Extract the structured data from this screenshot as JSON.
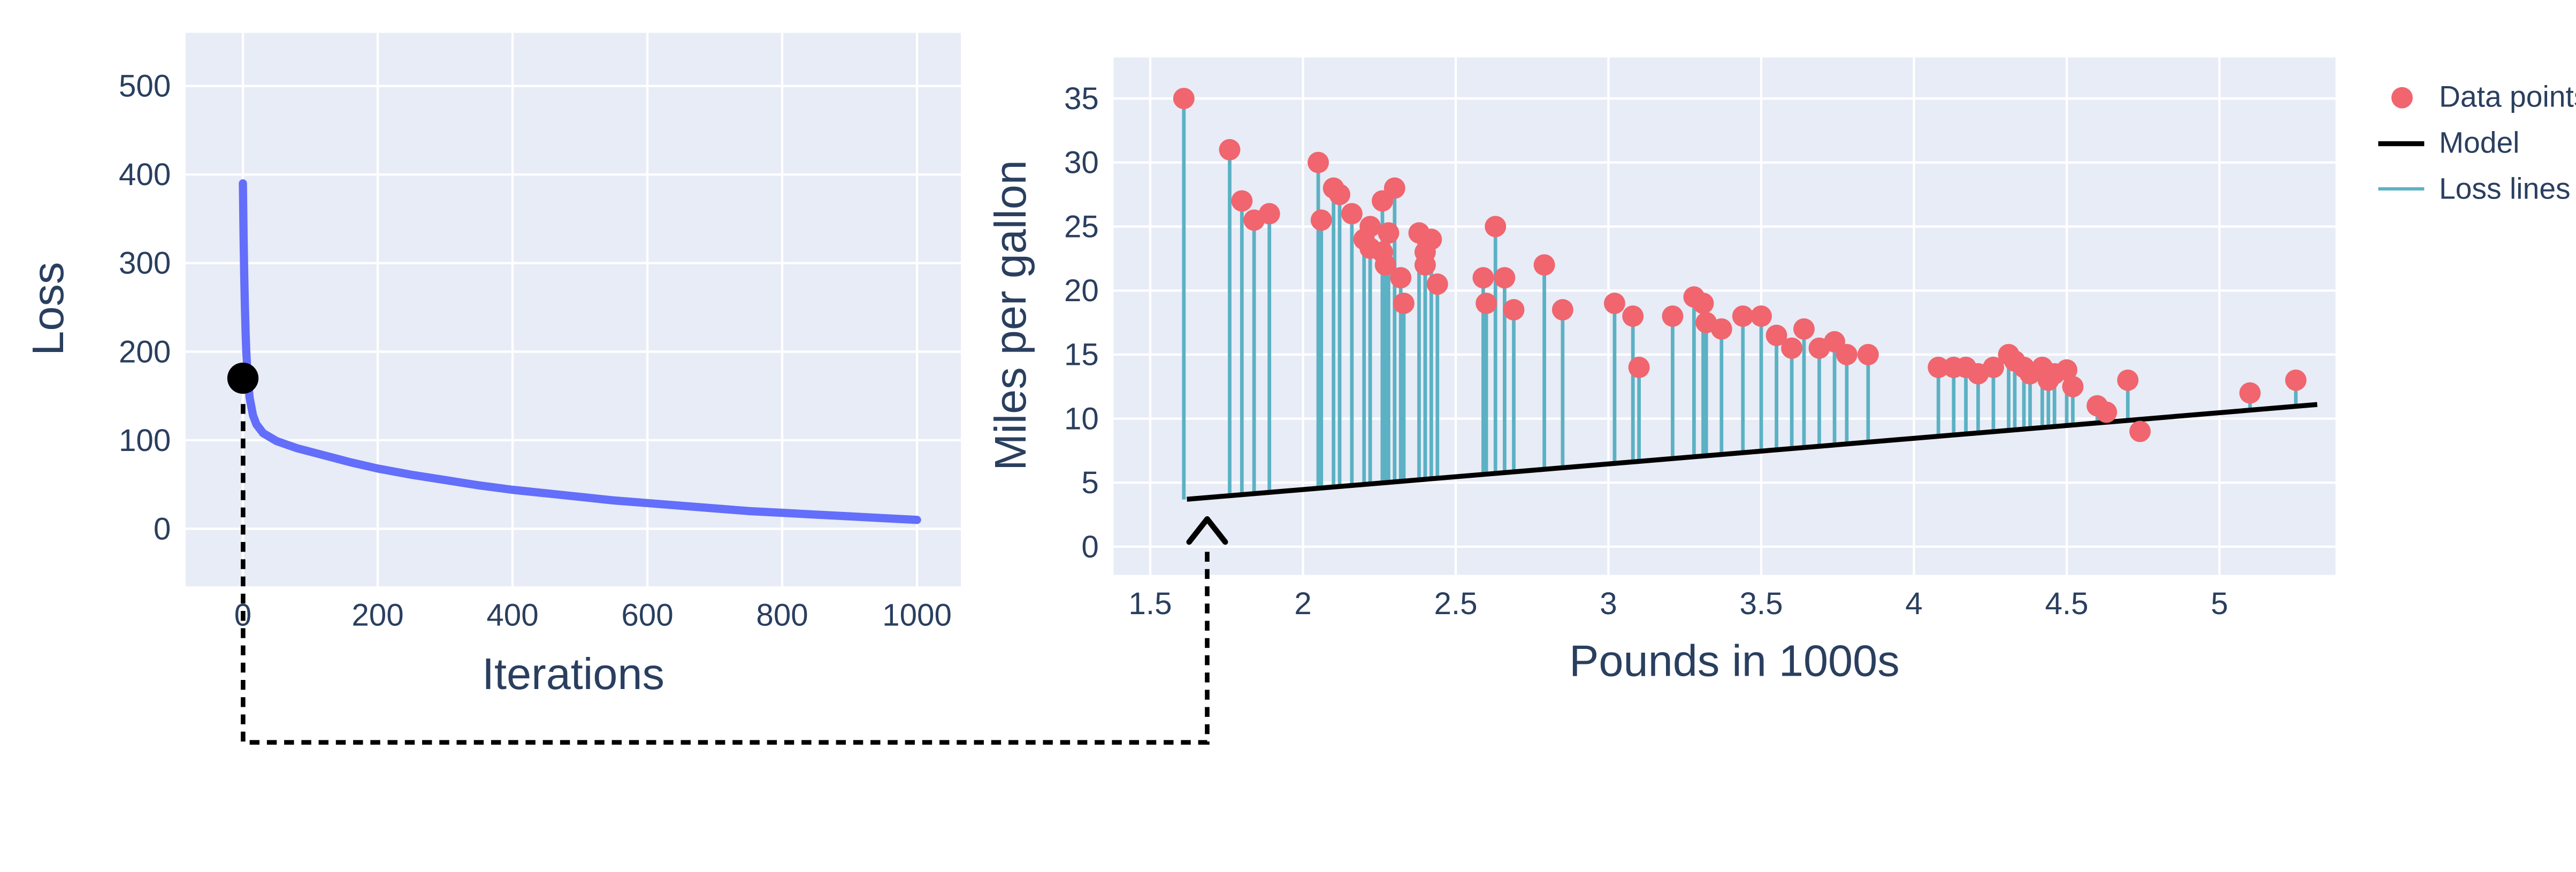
{
  "colors": {
    "plot_bg": "#e7ecf6",
    "grid": "#ffffff",
    "axis_text": "#2a3f5f",
    "loss_curve": "#636efa",
    "marker_dot": "#000000",
    "data_points": "#f0656e",
    "model_line": "#000000",
    "loss_lines": "#5cb1c4",
    "connector": "#000000"
  },
  "chart_data": [
    {
      "id": "loss-curve",
      "type": "line",
      "title": "",
      "xlabel": "Iterations",
      "ylabel": "Loss",
      "xlim": [
        -85,
        1065
      ],
      "ylim": [
        -65,
        560
      ],
      "xticks": [
        0,
        200,
        400,
        600,
        800,
        1000
      ],
      "yticks": [
        0,
        100,
        200,
        300,
        400,
        500
      ],
      "grid": true,
      "x": [
        0,
        1,
        2,
        3,
        4,
        5,
        7,
        10,
        15,
        20,
        30,
        50,
        80,
        120,
        160,
        200,
        250,
        300,
        350,
        400,
        450,
        500,
        550,
        600,
        650,
        700,
        750,
        800,
        850,
        900,
        950,
        1000
      ],
      "y": [
        390,
        330,
        285,
        250,
        222,
        200,
        172,
        148,
        128,
        118,
        108,
        99,
        91,
        83,
        75,
        68,
        61,
        55,
        49,
        44,
        40,
        36,
        32,
        29,
        26,
        23,
        20,
        18,
        16,
        14,
        12,
        10
      ],
      "marker": {
        "x": 0,
        "y": 170,
        "color": "#000000"
      }
    },
    {
      "id": "model-fit",
      "type": "scatter",
      "title": "",
      "xlabel": "Pounds in 1000s",
      "ylabel": "Miles per gallon",
      "xlim": [
        1.38,
        5.38
      ],
      "ylim": [
        -2.2,
        38.2
      ],
      "xticks": [
        1.5,
        2,
        2.5,
        3,
        3.5,
        4,
        4.5,
        5
      ],
      "yticks": [
        0,
        5,
        10,
        15,
        20,
        25,
        30,
        35
      ],
      "grid": true,
      "points": [
        [
          1.61,
          35
        ],
        [
          1.76,
          31
        ],
        [
          1.8,
          27
        ],
        [
          1.84,
          25.5
        ],
        [
          1.89,
          26
        ],
        [
          2.05,
          30
        ],
        [
          2.06,
          25.5
        ],
        [
          2.1,
          28
        ],
        [
          2.12,
          27.5
        ],
        [
          2.16,
          26
        ],
        [
          2.2,
          24
        ],
        [
          2.22,
          23.3
        ],
        [
          2.22,
          25
        ],
        [
          2.26,
          27
        ],
        [
          2.26,
          23
        ],
        [
          2.27,
          22
        ],
        [
          2.28,
          24.5
        ],
        [
          2.3,
          28
        ],
        [
          2.32,
          21
        ],
        [
          2.33,
          19
        ],
        [
          2.38,
          24.5
        ],
        [
          2.4,
          23
        ],
        [
          2.4,
          22
        ],
        [
          2.42,
          24
        ],
        [
          2.44,
          20.5
        ],
        [
          2.59,
          21
        ],
        [
          2.6,
          19
        ],
        [
          2.63,
          25
        ],
        [
          2.66,
          21
        ],
        [
          2.69,
          18.5
        ],
        [
          2.79,
          22
        ],
        [
          2.85,
          18.5
        ],
        [
          3.02,
          19
        ],
        [
          3.08,
          18
        ],
        [
          3.1,
          14
        ],
        [
          3.21,
          18
        ],
        [
          3.28,
          19.5
        ],
        [
          3.31,
          19
        ],
        [
          3.32,
          17.5
        ],
        [
          3.37,
          17
        ],
        [
          3.44,
          18
        ],
        [
          3.5,
          18
        ],
        [
          3.55,
          16.5
        ],
        [
          3.6,
          15.5
        ],
        [
          3.64,
          17
        ],
        [
          3.69,
          15.5
        ],
        [
          3.74,
          16
        ],
        [
          3.78,
          15
        ],
        [
          3.85,
          15
        ],
        [
          4.08,
          14
        ],
        [
          4.13,
          14
        ],
        [
          4.17,
          14
        ],
        [
          4.21,
          13.5
        ],
        [
          4.26,
          14
        ],
        [
          4.31,
          15
        ],
        [
          4.33,
          14.5
        ],
        [
          4.36,
          14
        ],
        [
          4.38,
          13.5
        ],
        [
          4.42,
          14
        ],
        [
          4.44,
          13
        ],
        [
          4.46,
          13.5
        ],
        [
          4.5,
          13.8
        ],
        [
          4.52,
          12.5
        ],
        [
          4.6,
          11
        ],
        [
          4.63,
          10.5
        ],
        [
          4.7,
          13
        ],
        [
          4.74,
          9
        ],
        [
          5.1,
          12
        ],
        [
          5.25,
          13
        ]
      ],
      "model": {
        "x": [
          1.62,
          5.32
        ],
        "y": [
          3.7,
          11.1
        ]
      },
      "legend": [
        {
          "label": "Data points",
          "type": "marker",
          "color": "#f0656e"
        },
        {
          "label": "Model",
          "type": "line",
          "color": "#000000",
          "thickness": 3
        },
        {
          "label": "Loss lines",
          "type": "line",
          "color": "#5cb1c4",
          "thickness": 2
        }
      ],
      "legend_position": "right-top"
    }
  ]
}
